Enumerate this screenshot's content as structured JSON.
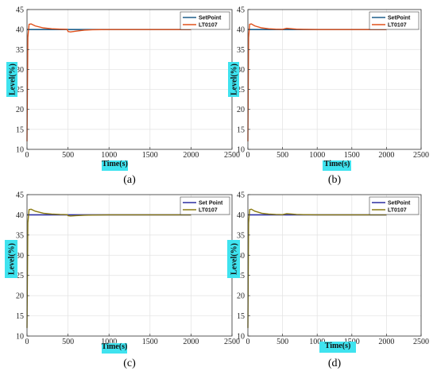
{
  "chart_data": [
    {
      "type": "line",
      "caption": "(a)",
      "xlabel": "Time(s)",
      "ylabel": "Level(%)",
      "xlim": [
        0,
        2500
      ],
      "ylim": [
        10,
        45
      ],
      "xticks": [
        "0",
        "500",
        "1000",
        "1500",
        "2000",
        "2500"
      ],
      "yticks": [
        "10",
        "15",
        "20",
        "25",
        "30",
        "35",
        "40",
        "45"
      ],
      "grid": true,
      "legend_position": "top-right",
      "series": [
        {
          "name": "SetPoint",
          "color": "#1f5f8b",
          "x": [
            0,
            2000
          ],
          "y": [
            40,
            40
          ]
        },
        {
          "name": "LT0107",
          "color": "#e0501a",
          "x": [
            0,
            10,
            25,
            50,
            100,
            200,
            300,
            400,
            490,
            500,
            530,
            600,
            700,
            800,
            1000,
            1500,
            2000
          ],
          "y": [
            12,
            38,
            41.3,
            41.4,
            40.9,
            40.4,
            40.2,
            40.1,
            40.05,
            39.5,
            39.4,
            39.6,
            39.85,
            39.95,
            40,
            40,
            40
          ]
        }
      ]
    },
    {
      "type": "line",
      "caption": "(b)",
      "xlabel": "Time(s)",
      "ylabel": "Level(%)",
      "xlim": [
        0,
        2500
      ],
      "ylim": [
        10,
        45
      ],
      "xticks": [
        "0",
        "500",
        "1000",
        "1500",
        "2000",
        "2500"
      ],
      "yticks": [
        "10",
        "15",
        "20",
        "25",
        "30",
        "35",
        "40",
        "45"
      ],
      "grid": true,
      "legend_position": "top-right",
      "series": [
        {
          "name": "SetPoint",
          "color": "#1f5f8b",
          "x": [
            0,
            2000
          ],
          "y": [
            40,
            40
          ]
        },
        {
          "name": "LT0107",
          "color": "#e0501a",
          "x": [
            0,
            10,
            25,
            50,
            100,
            200,
            300,
            400,
            500,
            560,
            600,
            700,
            800,
            1000,
            1500,
            2000
          ],
          "y": [
            12,
            38,
            41.3,
            41.4,
            40.9,
            40.4,
            40.2,
            40.1,
            40.05,
            40.3,
            40.25,
            40.1,
            40.05,
            40,
            40,
            40
          ]
        }
      ]
    },
    {
      "type": "line",
      "caption": "(c)",
      "xlabel": "Time(s)",
      "ylabel": "Level(%)",
      "xlim": [
        0,
        2500
      ],
      "ylim": [
        10,
        45
      ],
      "xticks": [
        "0",
        "500",
        "1000",
        "1500",
        "2000",
        "2500"
      ],
      "yticks": [
        "10",
        "15",
        "20",
        "25",
        "30",
        "35",
        "40",
        "45"
      ],
      "grid": true,
      "legend_position": "top-right",
      "series": [
        {
          "name": "Set Point",
          "color": "#2c2fa0",
          "x": [
            0,
            2000
          ],
          "y": [
            40,
            40
          ]
        },
        {
          "name": "LT0107",
          "color": "#8a7a10",
          "x": [
            0,
            10,
            25,
            50,
            100,
            200,
            300,
            400,
            490,
            500,
            530,
            600,
            700,
            800,
            1000,
            1500,
            2000
          ],
          "y": [
            12,
            38,
            41.3,
            41.4,
            40.9,
            40.4,
            40.2,
            40.1,
            40.05,
            39.8,
            39.7,
            39.8,
            39.9,
            39.95,
            40,
            40,
            40
          ]
        }
      ]
    },
    {
      "type": "line",
      "caption": "(d)",
      "xlabel": "Time(s)",
      "ylabel": "Level(%)",
      "xlim": [
        0,
        2500
      ],
      "ylim": [
        10,
        45
      ],
      "xticks": [
        "0",
        "500",
        "1000",
        "1500",
        "2000",
        "2500"
      ],
      "yticks": [
        "10",
        "15",
        "20",
        "25",
        "30",
        "35",
        "40",
        "45"
      ],
      "grid": true,
      "legend_position": "top-right",
      "series": [
        {
          "name": "SetPoint",
          "color": "#2c2fa0",
          "x": [
            0,
            2000
          ],
          "y": [
            40,
            40
          ]
        },
        {
          "name": "LT0107",
          "color": "#8a7a10",
          "x": [
            0,
            10,
            25,
            50,
            100,
            200,
            300,
            400,
            500,
            560,
            600,
            700,
            800,
            1000,
            1500,
            2000
          ],
          "y": [
            12,
            38,
            41.3,
            41.4,
            40.9,
            40.4,
            40.2,
            40.1,
            40.05,
            40.3,
            40.25,
            40.1,
            40.05,
            40,
            40,
            40
          ]
        }
      ]
    }
  ]
}
